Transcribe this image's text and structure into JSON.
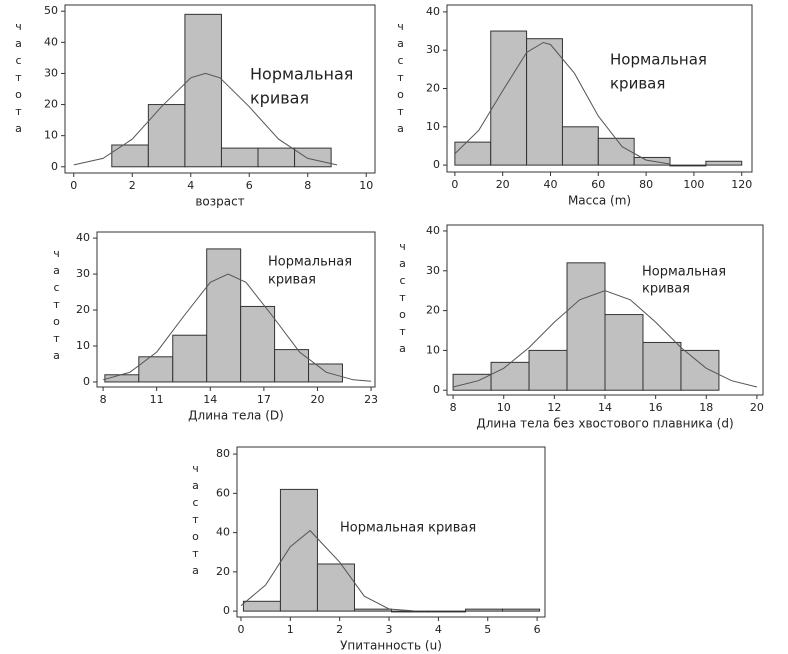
{
  "chart_data": [
    {
      "type": "histogram",
      "xlabel": "возраст",
      "ylabel": "частота",
      "annotation": [
        "Нормальная",
        "кривая"
      ],
      "bins": [
        1.3,
        2.55,
        3.8,
        5.05,
        6.3,
        7.55,
        8.8
      ],
      "values": [
        7,
        20,
        49,
        6,
        6,
        6
      ],
      "color": "#c0c0c0",
      "curve": {
        "x": [
          0,
          1,
          2,
          3,
          4,
          4.5,
          5,
          6,
          7,
          8,
          9
        ],
        "y": [
          0.6,
          2.7,
          8.9,
          19.3,
          28.6,
          30,
          28.6,
          19.3,
          8.9,
          2.7,
          0.6
        ]
      },
      "xlim": [
        -0.3,
        10.3
      ],
      "xticks": [
        0,
        2,
        4,
        6,
        8,
        10
      ],
      "ylim": [
        -2,
        52
      ],
      "yticks": [
        0,
        10,
        20,
        30,
        40,
        50
      ]
    },
    {
      "type": "histogram",
      "xlabel": "Масса (m)",
      "ylabel": "частота",
      "annotation": [
        "Нормальная",
        "кривая"
      ],
      "bins": [
        0,
        15,
        30,
        45,
        60,
        75,
        90,
        105,
        120
      ],
      "values": [
        6,
        35,
        33,
        10,
        7,
        2,
        0,
        1
      ],
      "color": "#c0c0c0",
      "curve": {
        "x": [
          0,
          10,
          20,
          30,
          37,
          40,
          50,
          60,
          70,
          80,
          90
        ],
        "y": [
          3.0,
          9.1,
          19.4,
          29.4,
          32,
          31.5,
          24,
          12.8,
          4.8,
          1.3,
          0.3
        ]
      },
      "xlim": [
        -3.3,
        124.3
      ],
      "xticks": [
        0,
        20,
        40,
        60,
        80,
        100,
        120
      ],
      "ylim": [
        -1.8,
        41.8
      ],
      "yticks": [
        0,
        10,
        20,
        30,
        40
      ]
    },
    {
      "type": "histogram",
      "xlabel": "Длина тела (D)",
      "ylabel": "частота",
      "annotation": [
        "Нормальная",
        "кривая"
      ],
      "bins": [
        8.1,
        10,
        11.9,
        13.8,
        15.7,
        17.6,
        19.5,
        21.4
      ],
      "values": [
        2,
        7,
        13,
        37,
        21,
        9,
        5
      ],
      "color": "#c0c0c0",
      "curve": {
        "x": [
          8,
          9.5,
          11,
          12.5,
          14,
          15,
          16,
          17.5,
          19,
          20.5,
          22,
          23
        ],
        "y": [
          0.6,
          2.7,
          8.3,
          18.2,
          27.7,
          30,
          27.7,
          18.2,
          8.3,
          2.7,
          0.6,
          0.2
        ]
      },
      "xlim": [
        7.66,
        23.22
      ],
      "xticks": [
        8,
        11,
        14,
        17,
        20,
        23
      ],
      "ylim": [
        -1.4,
        41.7
      ],
      "yticks": [
        0,
        10,
        20,
        30,
        40
      ]
    },
    {
      "type": "histogram",
      "xlabel": "Длина тела без хвостового плавника (d)",
      "ylabel": "частота",
      "annotation": [
        "Нормальная",
        "кривая"
      ],
      "bins": [
        8,
        9.5,
        11,
        12.5,
        14,
        15.5,
        17,
        18.5
      ],
      "values": [
        4,
        7,
        10,
        32,
        19,
        12,
        10
      ],
      "color": "#c0c0c0",
      "curve": {
        "x": [
          8,
          9,
          10,
          11,
          12,
          13,
          14,
          15,
          16,
          17,
          18,
          19,
          20
        ],
        "y": [
          0.8,
          2.4,
          5.5,
          10.7,
          17.1,
          22.7,
          25,
          22.7,
          17.1,
          10.7,
          5.5,
          2.4,
          0.8
        ]
      },
      "xlim": [
        7.76,
        20.24
      ],
      "xticks": [
        8,
        10,
        12,
        14,
        16,
        18,
        20
      ],
      "ylim": [
        -1.2,
        41.5
      ],
      "yticks": [
        0,
        10,
        20,
        30,
        40
      ]
    },
    {
      "type": "histogram",
      "xlabel": "Упитанность (u)",
      "ylabel": "частота",
      "annotation": [
        "Нормальная кривая"
      ],
      "bins": [
        0.05,
        0.8,
        1.55,
        2.3,
        3.05,
        3.8,
        4.55,
        5.3,
        6.05
      ],
      "values": [
        5,
        62,
        24,
        1,
        0,
        0,
        1,
        1
      ],
      "color": "#c0c0c0",
      "curve": {
        "x": [
          0,
          0.5,
          1,
          1.4,
          2,
          2.5,
          3,
          3.5
        ],
        "y": [
          2.7,
          13.3,
          32.8,
          41,
          24.9,
          7.6,
          1.1,
          0.1
        ]
      },
      "xlim": [
        -0.08,
        6.16
      ],
      "xticks": [
        0,
        1,
        2,
        3,
        4,
        5,
        6
      ],
      "ylim": [
        -3,
        83.6
      ],
      "yticks": [
        0,
        20,
        40,
        60,
        80
      ]
    }
  ]
}
